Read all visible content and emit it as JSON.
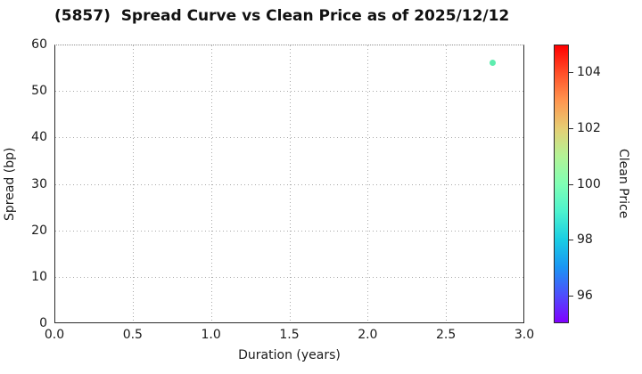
{
  "chart_data": {
    "type": "scatter",
    "title": "(5857)  Spread Curve vs Clean Price as of 2025/12/12",
    "xlabel": "Duration (years)",
    "ylabel": "Spread (bp)",
    "xlim": [
      0.0,
      3.0
    ],
    "ylim": [
      0,
      60
    ],
    "xticks": [
      {
        "value": 0.0,
        "label": "0.0"
      },
      {
        "value": 0.5,
        "label": "0.5"
      },
      {
        "value": 1.0,
        "label": "1.0"
      },
      {
        "value": 1.5,
        "label": "1.5"
      },
      {
        "value": 2.0,
        "label": "2.0"
      },
      {
        "value": 2.5,
        "label": "2.5"
      },
      {
        "value": 3.0,
        "label": "3.0"
      }
    ],
    "yticks": [
      {
        "value": 0,
        "label": "0"
      },
      {
        "value": 10,
        "label": "10"
      },
      {
        "value": 20,
        "label": "20"
      },
      {
        "value": 30,
        "label": "30"
      },
      {
        "value": 40,
        "label": "40"
      },
      {
        "value": 50,
        "label": "50"
      },
      {
        "value": 60,
        "label": "60"
      }
    ],
    "grid": true,
    "grid_linestyle": "dotted",
    "legend": "none",
    "points": [
      {
        "x": 2.8,
        "y": 56,
        "clean_price_est": 99.7,
        "color": "#5EEDAF"
      }
    ],
    "colorbar": {
      "label": "Clean Price",
      "vmin": 95,
      "vmax": 105,
      "colormap": "rainbow",
      "ticks": [
        {
          "value": 96,
          "label": "96"
        },
        {
          "value": 98,
          "label": "98"
        },
        {
          "value": 100,
          "label": "100"
        },
        {
          "value": 102,
          "label": "102"
        },
        {
          "value": 104,
          "label": "104"
        }
      ],
      "gradient_top_to_bottom": [
        "#FF0000",
        "#FF4F28",
        "#FF964F",
        "#E6CE74",
        "#B3F396",
        "#80FFB4",
        "#4DF3CE",
        "#1ACEE3",
        "#1A96F3",
        "#4D4FFC",
        "#8000FF"
      ]
    }
  }
}
